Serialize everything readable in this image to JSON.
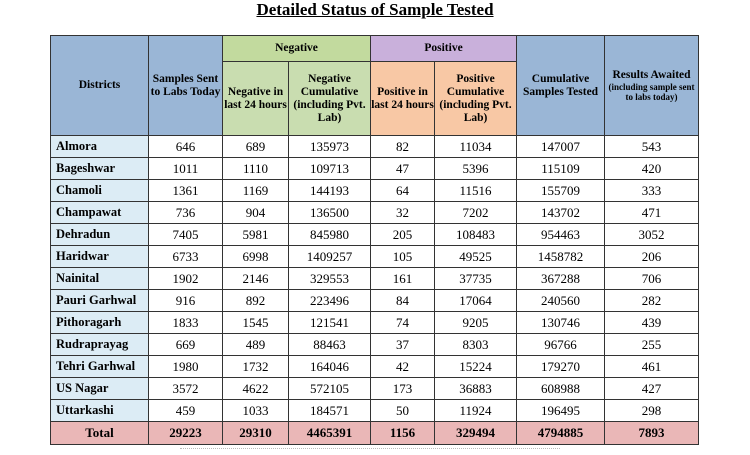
{
  "title": "Detailed Status of Sample Tested",
  "header": {
    "districts": "Districts",
    "samples_sent": "Samples Sent to Labs Today",
    "negative": "Negative",
    "negative_24": "Negative in last 24 hours",
    "negative_cum": "Negative Cumulative (including Pvt. Lab)",
    "positive": "Positive",
    "positive_24": "Positive in last 24 hours",
    "positive_cum": "Positive Cumulative (including Pvt. Lab)",
    "cumulative": "Cumulative Samples Tested",
    "results_awaited": "Results Awaited",
    "results_awaited_note": "(including sample sent to labs today)"
  },
  "rows": [
    {
      "district": "Almora",
      "sent": "646",
      "neg24": "689",
      "negcum": "135973",
      "pos24": "82",
      "poscum": "11034",
      "cum": "147007",
      "await": "543"
    },
    {
      "district": "Bageshwar",
      "sent": "1011",
      "neg24": "1110",
      "negcum": "109713",
      "pos24": "47",
      "poscum": "5396",
      "cum": "115109",
      "await": "420"
    },
    {
      "district": "Chamoli",
      "sent": "1361",
      "neg24": "1169",
      "negcum": "144193",
      "pos24": "64",
      "poscum": "11516",
      "cum": "155709",
      "await": "333"
    },
    {
      "district": "Champawat",
      "sent": "736",
      "neg24": "904",
      "negcum": "136500",
      "pos24": "32",
      "poscum": "7202",
      "cum": "143702",
      "await": "471"
    },
    {
      "district": "Dehradun",
      "sent": "7405",
      "neg24": "5981",
      "negcum": "845980",
      "pos24": "205",
      "poscum": "108483",
      "cum": "954463",
      "await": "3052"
    },
    {
      "district": "Haridwar",
      "sent": "6733",
      "neg24": "6998",
      "negcum": "1409257",
      "pos24": "105",
      "poscum": "49525",
      "cum": "1458782",
      "await": "206"
    },
    {
      "district": "Nainital",
      "sent": "1902",
      "neg24": "2146",
      "negcum": "329553",
      "pos24": "161",
      "poscum": "37735",
      "cum": "367288",
      "await": "706"
    },
    {
      "district": "Pauri Garhwal",
      "sent": "916",
      "neg24": "892",
      "negcum": "223496",
      "pos24": "84",
      "poscum": "17064",
      "cum": "240560",
      "await": "282"
    },
    {
      "district": "Pithoragarh",
      "sent": "1833",
      "neg24": "1545",
      "negcum": "121541",
      "pos24": "74",
      "poscum": "9205",
      "cum": "130746",
      "await": "439"
    },
    {
      "district": "Rudraprayag",
      "sent": "669",
      "neg24": "489",
      "negcum": "88463",
      "pos24": "37",
      "poscum": "8303",
      "cum": "96766",
      "await": "255"
    },
    {
      "district": "Tehri Garhwal",
      "sent": "1980",
      "neg24": "1732",
      "negcum": "164046",
      "pos24": "42",
      "poscum": "15224",
      "cum": "179270",
      "await": "461"
    },
    {
      "district": "US Nagar",
      "sent": "3572",
      "neg24": "4622",
      "negcum": "572105",
      "pos24": "173",
      "poscum": "36883",
      "cum": "608988",
      "await": "427"
    },
    {
      "district": "Uttarkashi",
      "sent": "459",
      "neg24": "1033",
      "negcum": "184571",
      "pos24": "50",
      "poscum": "11924",
      "cum": "196495",
      "await": "298"
    }
  ],
  "total": {
    "district": "Total",
    "sent": "29223",
    "neg24": "29310",
    "negcum": "4465391",
    "pos24": "1156",
    "poscum": "329494",
    "cum": "4794885",
    "await": "7893"
  }
}
